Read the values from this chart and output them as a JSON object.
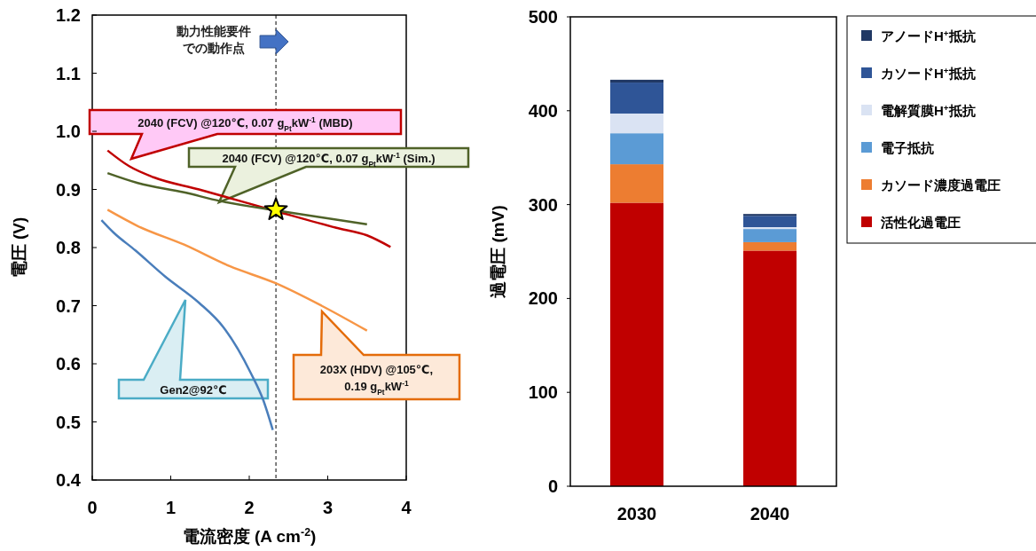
{
  "chart_data": [
    {
      "type": "line",
      "xlabel": "電流密度 (A cm$^{-2}$)",
      "ylabel": "電圧 (V)",
      "xlim": [
        0,
        4
      ],
      "xticks": [
        0,
        1,
        2,
        3,
        4
      ],
      "ylim": [
        0.4,
        1.2
      ],
      "yticks": [
        0.4,
        0.5,
        0.6,
        0.7,
        0.8,
        0.9,
        {
          "value": 1.0,
          "label": "1.0"
        },
        1.1,
        1.2
      ],
      "grid": false,
      "line_style": "solid",
      "series": [
        {
          "color": "#c00000",
          "x": [
            0.195,
            0.47,
            0.78,
            1.36,
            2.33,
            3.11,
            3.5,
            3.8
          ],
          "values": [
            0.967,
            0.94,
            0.921,
            0.9,
            0.863,
            0.834,
            0.821,
            0.801
          ]
        },
        {
          "color": "#4f6228",
          "x": [
            0.195,
            0.58,
            1.17,
            1.63,
            2.33,
            2.92,
            3.5
          ],
          "values": [
            0.928,
            0.911,
            0.895,
            0.88,
            0.864,
            0.852,
            0.84
          ]
        },
        {
          "color": "#f79646",
          "x": [
            0.195,
            0.58,
            1.17,
            1.75,
            2.33,
            2.92,
            3.5
          ],
          "values": [
            0.865,
            0.837,
            0.805,
            0.768,
            0.739,
            0.7,
            0.657
          ]
        },
        {
          "color": "#4a7ebb",
          "x": [
            0.117,
            0.27,
            0.55,
            0.93,
            1.36,
            1.67,
            2.02,
            2.18,
            2.3
          ],
          "values": [
            0.847,
            0.826,
            0.795,
            0.75,
            0.705,
            0.663,
            0.584,
            0.537,
            0.486
          ]
        },
        {
          "type": "scatter",
          "marker": "star",
          "color": "#ffff00",
          "x": [
            2.34
          ],
          "values": [
            0.865
          ]
        }
      ],
      "ref_lines": [
        {
          "axis": "x",
          "value": 2.34,
          "label": "動力性能要件での動作点",
          "line_style": "dashed",
          "color": "#000000"
        }
      ],
      "annotations": [
        "2040 (FCV) @120℃, 0.07 g$_{Pt}$kW$^{-1}$ (MBD)",
        "2040 (FCV) @120℃, 0.07 g$_{Pt}$kW$^{-1}$ (Sim.)",
        "Gen2@92℃",
        "203X (HDV) @105℃, 0.19 g$_{Pt}$kW$^{-1}$"
      ]
    },
    {
      "type": "bar",
      "stacked": true,
      "ylabel": "過電圧 (mV)",
      "categories": [
        "2030",
        "2040"
      ],
      "ylim": [
        0,
        500
      ],
      "yticks": [
        0,
        100,
        200,
        300,
        400,
        500
      ],
      "grid": false,
      "legend": "right",
      "series": [
        {
          "name": "活性化過電圧",
          "color": "#c00000",
          "values": [
            302,
            251
          ]
        },
        {
          "name": "カソード濃度過電圧",
          "color": "#ed7d31",
          "values": [
            41,
            9
          ]
        },
        {
          "name": "電子抵抗",
          "color": "#5b9bd5",
          "values": [
            33,
            14
          ]
        },
        {
          "name": "電解質膜H$^{+}$抵抗",
          "color": "#dae3f3",
          "values": [
            21,
            2
          ]
        },
        {
          "name": "カソードH$^{+}$抵抗",
          "color": "#2f5597",
          "values": [
            33,
            12
          ]
        },
        {
          "name": "アノードH$^{+}$抵抗",
          "color": "#203864",
          "values": [
            3,
            2
          ]
        }
      ]
    }
  ]
}
